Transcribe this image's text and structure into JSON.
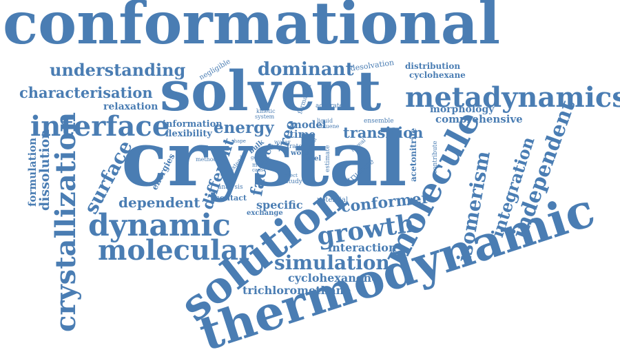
{
  "words": [
    "conformational",
    "solvent",
    "crystal",
    "thermodynamic",
    "solution",
    "molecule",
    "metadynamics",
    "interface",
    "dynamic",
    "molecular",
    "crystallization",
    "surface",
    "understanding",
    "dominant",
    "characterisation",
    "growth",
    "simulation",
    "independent",
    "isomerism",
    "integration",
    "energy",
    "dependent",
    "different",
    "face",
    "free",
    "conformer",
    "transition",
    "specific",
    "interaction",
    "cyclohexanone",
    "trichloromethane",
    "dissolution",
    "formulation",
    "relaxation",
    "comprehensive",
    "morphology",
    "model",
    "time",
    "information",
    "flexibility",
    "distribution",
    "cyclohexane",
    "desolvation",
    "negligible",
    "acetonitrile",
    "energies",
    "contact",
    "analysis",
    "exchange",
    "potential",
    "force",
    "bulk",
    "work",
    "level",
    "rate",
    "study",
    "structure",
    "ensemble",
    "accurate",
    "formation",
    "kinetic",
    "system",
    "liquid",
    "toluene",
    "water",
    "several",
    "reveal",
    "contribute",
    "method",
    "extend",
    "mean",
    "effect",
    "shape",
    "estimate",
    "gene",
    "caus"
  ],
  "colors": {
    "word": "#4a7db3",
    "background": "#ffffff"
  }
}
